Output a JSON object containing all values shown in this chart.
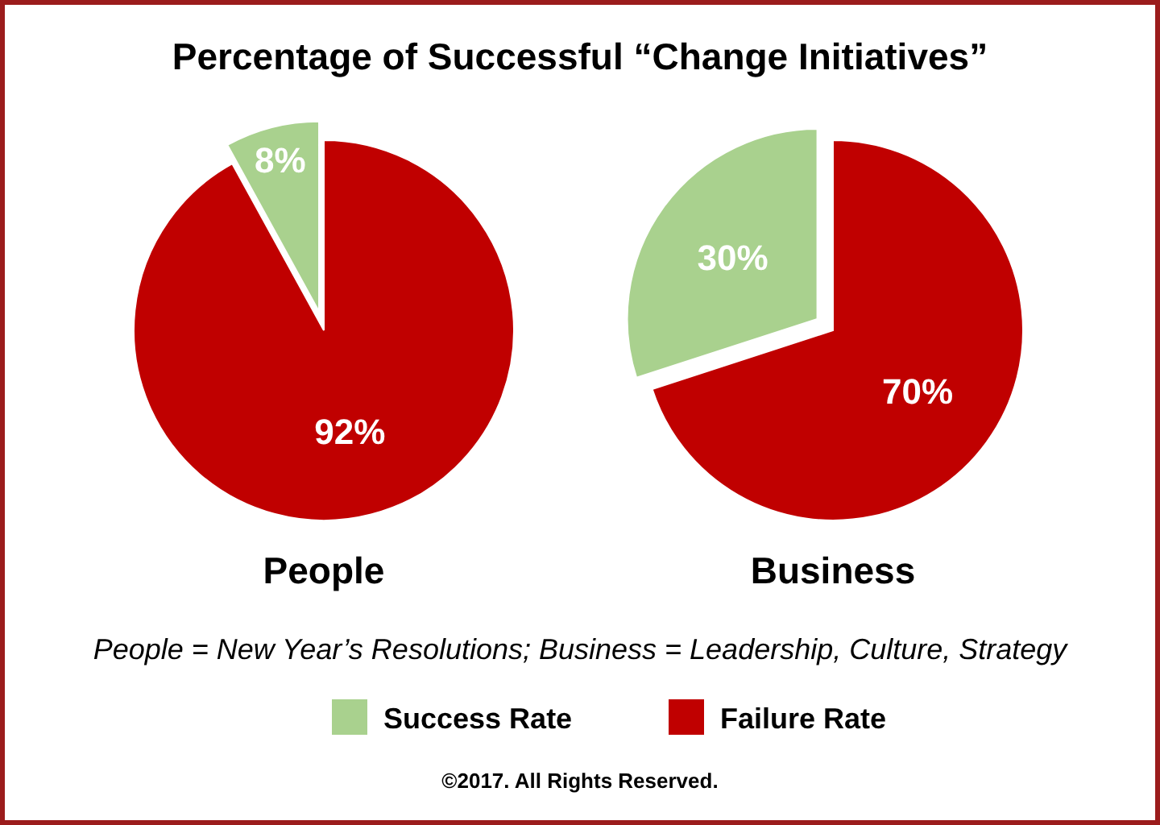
{
  "chart_data": [
    {
      "type": "pie",
      "title": "Percentage of Successful “Change Initiatives”",
      "xlabel": "People",
      "categories": [
        "Success Rate",
        "Failure Rate"
      ],
      "values": [
        8,
        92
      ],
      "value_labels": [
        "8%",
        "92%"
      ],
      "colors": [
        "#a9d18e",
        "#c00000"
      ],
      "legend": "bottom",
      "annotations": [
        "People = New Year’s Resolutions; Business = Leadership, Culture, Strategy",
        "©2017. All Rights Reserved."
      ]
    },
    {
      "type": "pie",
      "xlabel": "Business",
      "categories": [
        null,
        null
      ],
      "values": [
        30,
        70
      ],
      "value_labels": [
        "30%",
        "70%"
      ],
      "colors": [
        "#a9d18e",
        "#c00000"
      ]
    }
  ]
}
